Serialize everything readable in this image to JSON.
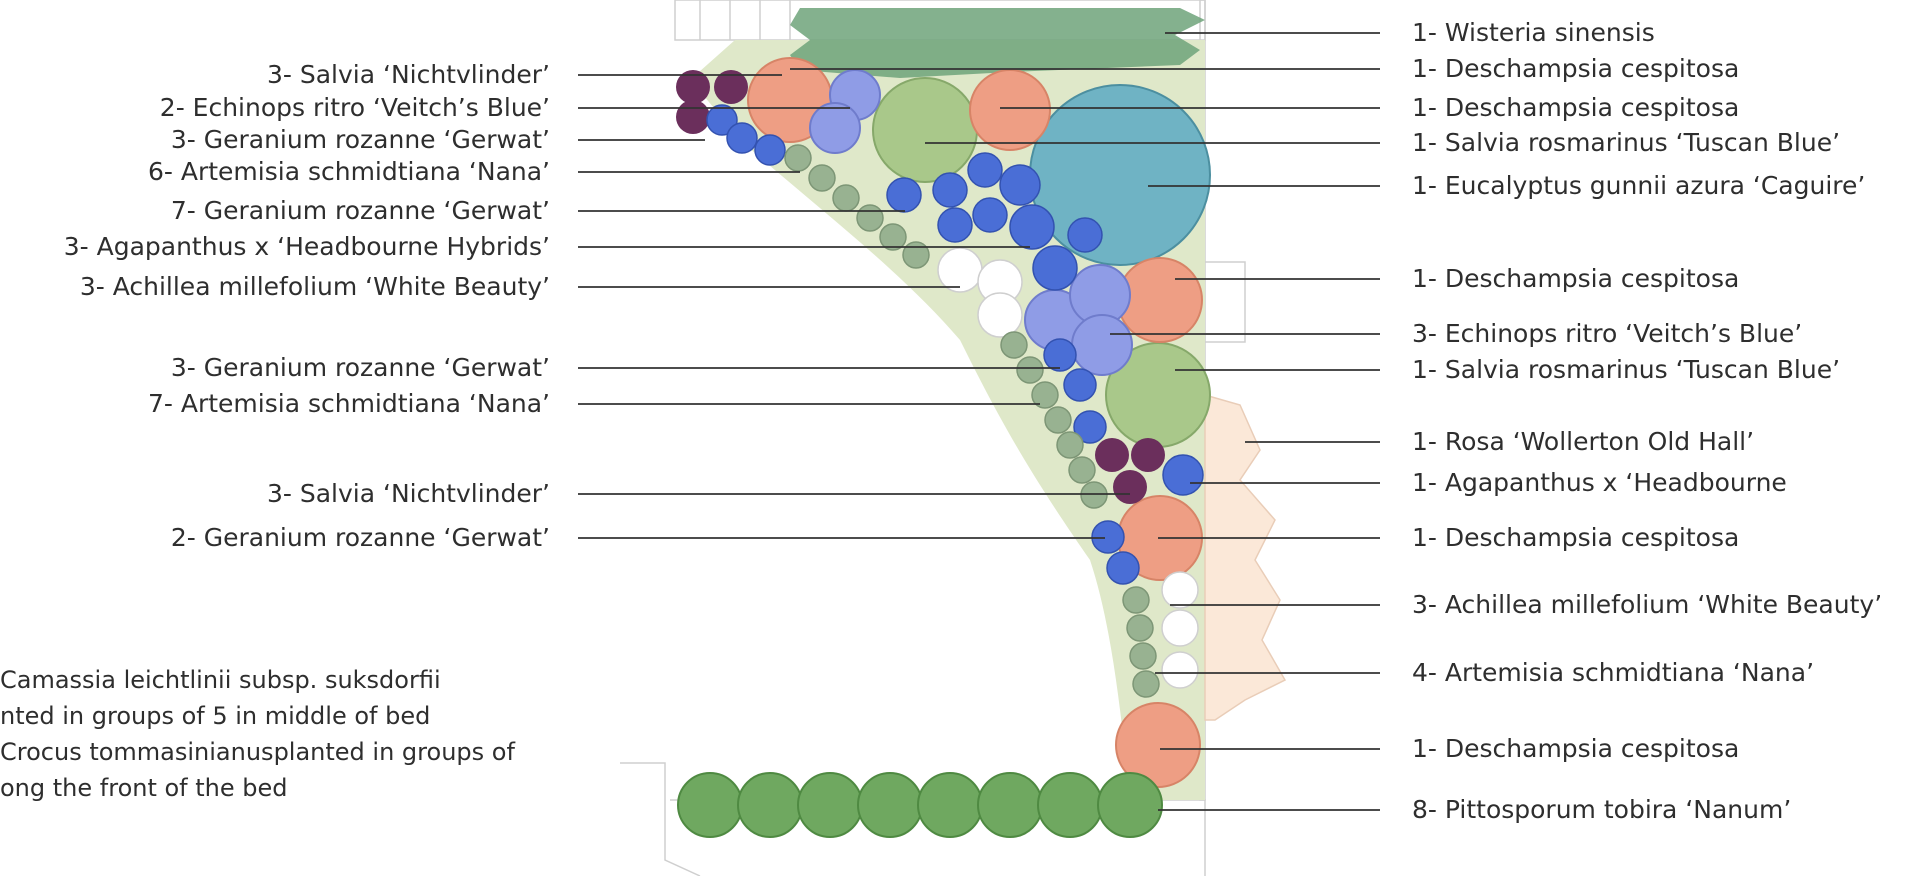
{
  "left_labels": [
    "3- Salvia ‘Nichtvlinder’",
    "2- Echinops ritro ‘Veitch’s Blue’",
    "3- Geranium rozanne ‘Gerwat’",
    "6- Artemisia schmidtiana ‘Nana’",
    "7- Geranium rozanne ‘Gerwat’",
    "3- Agapanthus x ‘Headbourne Hybrids’",
    "3- Achillea millefolium ‘White Beauty’",
    "3- Geranium rozanne ‘Gerwat’",
    "7- Artemisia schmidtiana ‘Nana’",
    "3- Salvia ‘Nichtvlinder’",
    "2- Geranium rozanne ‘Gerwat’"
  ],
  "right_labels": [
    "1- Wisteria sinensis",
    "1- Deschampsia cespitosa",
    "1- Deschampsia cespitosa",
    "1- Salvia rosmarinus ‘Tuscan Blue’",
    "1- Eucalyptus gunnii azura ‘Caguire’",
    "1- Deschampsia cespitosa",
    "3- Echinops ritro ‘Veitch’s Blue’",
    "1- Salvia rosmarinus ‘Tuscan Blue’",
    "1- Rosa ‘Wollerton Old Hall’",
    "1- Agapanthus x ‘Headbourne",
    "1- Deschampsia cespitosa",
    "3- Achillea millefolium ‘White Beauty’",
    "4- Artemisia schmidtiana ‘Nana’",
    "1- Deschampsia cespitosa",
    "8- Pittosporum tobira ‘Nanum’"
  ],
  "bulb_note": [
    "Camassia leichtlinii subsp. suksdorfii",
    "nted in groups of 5 in middle of bed",
    "Crocus tommasinianusplanted in groups of",
    "ong the front of the bed"
  ],
  "colors": {
    "bed": "#dfe8c9",
    "deschampsia": "#ee9e84",
    "salvia_nichtvlinder": "#6b2f5c",
    "echinops": "#8f9ce6",
    "geranium": "#4a6ed6",
    "artemisia": "#98b291",
    "achillea": "#ffffff",
    "salvia_rosmarinus": "#a9c88a",
    "eucalyptus": "#6fb3c4",
    "wisteria": "#6ea37a",
    "rosa": "#fbe8d8",
    "pittosporum": "#6fa860"
  }
}
